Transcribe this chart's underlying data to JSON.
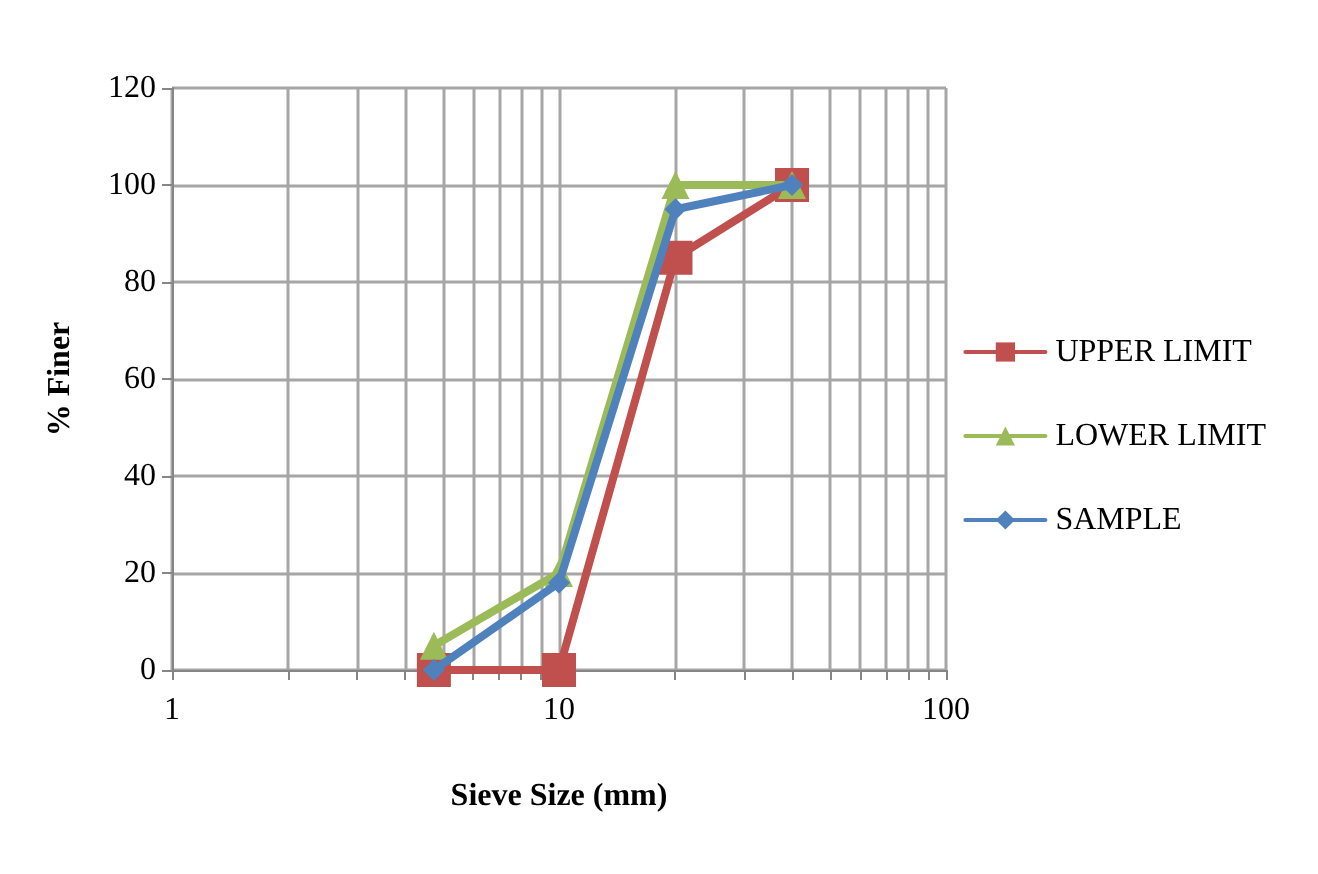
{
  "chart_data": {
    "type": "line",
    "xlabel": "Sieve Size (mm)",
    "ylabel": "% Finer",
    "log": "x",
    "xlim": [
      1,
      100
    ],
    "xticks": [
      1,
      {
        "value": 2,
        "label": null
      },
      {
        "value": 3,
        "label": null
      },
      {
        "value": 4,
        "label": null
      },
      {
        "value": 5,
        "label": null
      },
      {
        "value": 6,
        "label": null
      },
      {
        "value": 7,
        "label": null
      },
      {
        "value": 8,
        "label": null
      },
      {
        "value": 9,
        "label": null
      },
      10,
      {
        "value": 20,
        "label": null
      },
      {
        "value": 30,
        "label": null
      },
      {
        "value": 40,
        "label": null
      },
      {
        "value": 50,
        "label": null
      },
      {
        "value": 60,
        "label": null
      },
      {
        "value": 70,
        "label": null
      },
      {
        "value": 80,
        "label": null
      },
      {
        "value": 90,
        "label": null
      },
      100
    ],
    "ylim": [
      0,
      120
    ],
    "yticks": [
      0,
      20,
      40,
      60,
      80,
      100,
      120
    ],
    "grid": true,
    "legend": "right",
    "line_style": "solid",
    "x": [
      4.75,
      10,
      20,
      40
    ],
    "series": [
      {
        "name": "UPPER LIMIT",
        "color": "#c0504d",
        "marker": "square",
        "values": [
          0,
          0,
          85,
          100
        ]
      },
      {
        "name": "LOWER LIMIT",
        "color": "#9bbb59",
        "marker": "triangle",
        "values": [
          5,
          20,
          100,
          100
        ]
      },
      {
        "name": "SAMPLE",
        "color": "#4f81bd",
        "marker": "diamond",
        "values": [
          0,
          18,
          95,
          100
        ]
      }
    ]
  }
}
